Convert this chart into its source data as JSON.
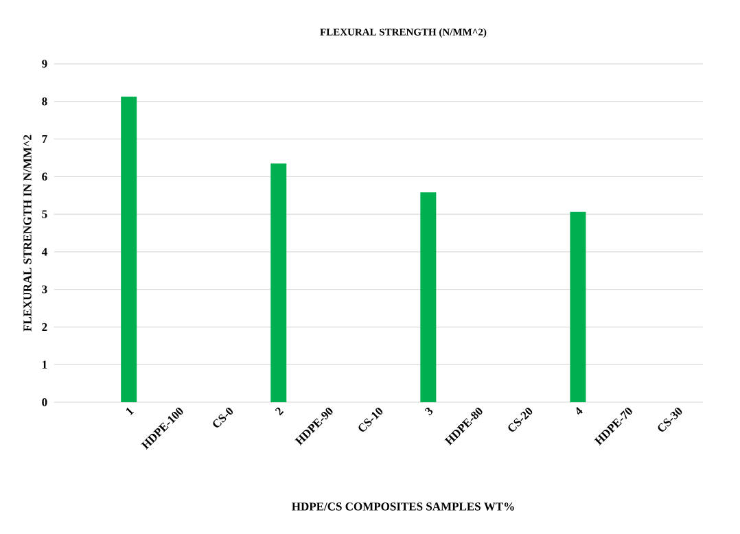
{
  "chart_data": {
    "type": "bar",
    "title": "FLEXURAL STRENGTH (N/MM^2)",
    "xlabel": "HDPE/CS COMPOSITES SAMPLES WT%",
    "ylabel": "FLEXURAL STRENGTH IN N/MM^2",
    "categories": [
      null,
      "1",
      "HDPE-100",
      "CS-0",
      "2",
      "HDPE-90",
      "CS-10",
      "3",
      "HDPE-80",
      "CS-20",
      "4",
      "HDPE-70",
      "CS-30"
    ],
    "values": [
      null,
      8.13,
      null,
      null,
      6.35,
      null,
      null,
      5.58,
      null,
      null,
      5.06,
      null,
      null
    ],
    "color": "#00b050",
    "ylim": [
      0,
      9
    ],
    "yticks": [
      0,
      1,
      2,
      3,
      4,
      5,
      6,
      7,
      8,
      9
    ],
    "grid": "y"
  }
}
